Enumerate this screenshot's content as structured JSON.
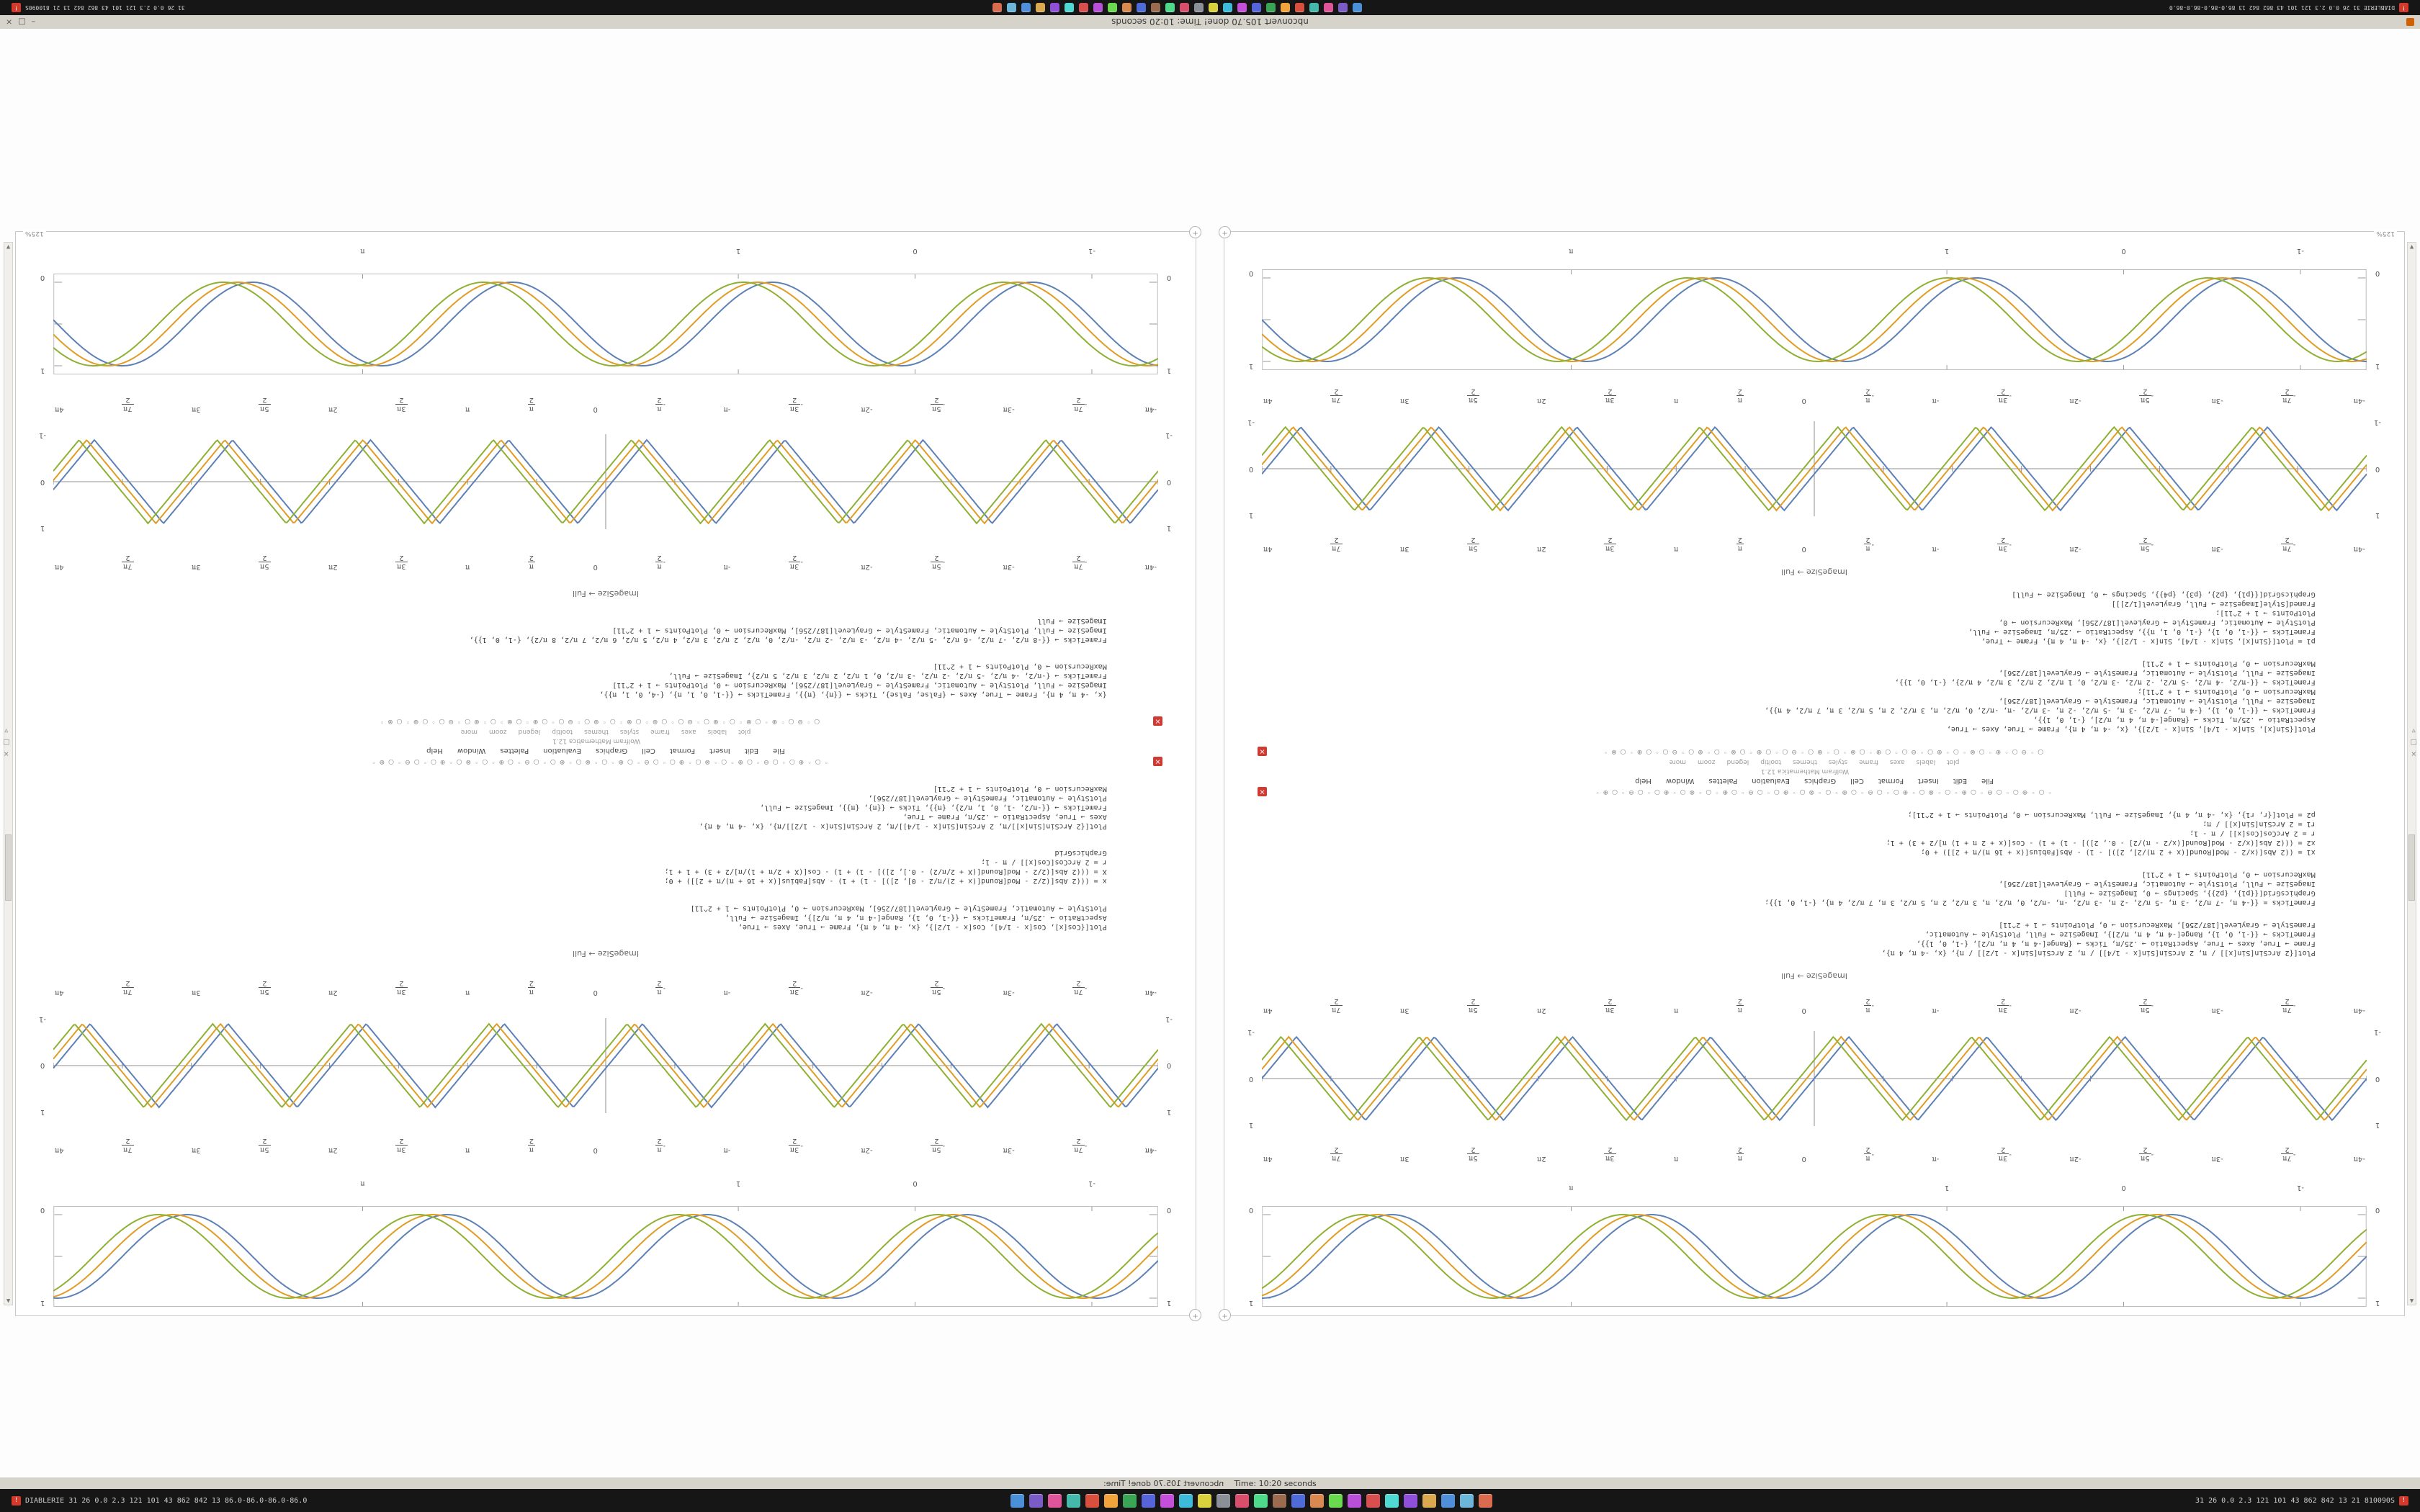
{
  "window": {
    "title": "nbconvert 105.70 done!   Time: 10:20 seconds",
    "controls": [
      "–",
      "□",
      "×"
    ],
    "zoom_badge": "125%"
  },
  "statusline": {
    "mirrored": "nbconvert 105.70 done!  Time:",
    "plain": "Time: 10:20 seconds"
  },
  "taskbar": {
    "left_stats": "DIABLERIE 31 26 0.0 2.3 121 101 43 862 842 13 86.0-86.0-86.0-86.0",
    "right_stats": "31 26 0.0 2.3 121 101 43 862 842 13 21 810090S",
    "alert_glyph": "!",
    "icons": [
      "#4a90d9",
      "#7b5cc6",
      "#e0559a",
      "#45b8ac",
      "#d94f3d",
      "#f2a33c",
      "#3aa655",
      "#5565d9",
      "#c44fd9",
      "#3dbbd9",
      "#d9d23d",
      "#8a8f98",
      "#d94f6b",
      "#4fd98a",
      "#9a6b4f",
      "#4f6bd9",
      "#d9884f",
      "#6bd94f",
      "#b84fd9",
      "#d94f4f",
      "#4fd9d2",
      "#8f4fd9",
      "#d9a84f",
      "#4f8fd9",
      "#6bb6d9",
      "#d96b4f"
    ]
  },
  "colors": {
    "series_blue": "#5E81B5",
    "series_yellow": "#E19C24",
    "series_green": "#8FB032",
    "close_red": "#cf3a32",
    "frame_gray": "#bdbdbd"
  },
  "ticks": {
    "half_pi": [
      "-4π",
      "-7π/2",
      "-3π",
      "-5π/2",
      "-2π",
      "-3π/2",
      "-π",
      "-π/2",
      "0",
      "π/2",
      "π",
      "3π/2",
      "2π",
      "5π/2",
      "3π",
      "7π/2",
      "4π"
    ],
    "framed": [
      {
        "label": "-1",
        "pos": 6
      },
      {
        "label": "0",
        "pos": 22
      },
      {
        "label": "1",
        "pos": 38
      },
      {
        "label": "π",
        "pos": 72
      }
    ],
    "yside": [
      "1",
      "0",
      "-1"
    ],
    "yside_framed": [
      "1",
      "0"
    ]
  },
  "plot_specs": {
    "framed": {
      "kind": "sin",
      "periods": 4.25,
      "frame": true,
      "series": [
        {
          "color": "#5E81B5",
          "phase": 0
        },
        {
          "color": "#E19C24",
          "phase": -0.35
        },
        {
          "color": "#8FB032",
          "phase": -0.7
        }
      ]
    },
    "axes": {
      "kind": "tri",
      "periods": 8,
      "axes": true,
      "series": [
        {
          "color": "#5E81B5",
          "phase": 0
        },
        {
          "color": "#E19C24",
          "phase": -0.35
        },
        {
          "color": "#8FB032",
          "phase": -0.7
        }
      ]
    }
  },
  "chart_data": [
    {
      "type": "line",
      "title": "framed sine comparison",
      "x_range": [
        "-4π",
        "4π"
      ],
      "ylim": [
        -1,
        1
      ],
      "series": [
        {
          "name": "Sin[x]"
        },
        {
          "name": "Sin[x - 1/4]"
        },
        {
          "name": "Sin[x - 1/2]"
        }
      ]
    },
    {
      "type": "line",
      "title": "triangle-wave comparison",
      "x_range": [
        "-4π",
        "4π"
      ],
      "ylim": [
        -1,
        1
      ],
      "series": [
        {
          "name": "2 ArcSin[Sin[x]]/π"
        },
        {
          "name": "2 ArcSin[Sin[x - 1/4]]/π"
        },
        {
          "name": "2 ArcSin[Sin[x - 1/2]]/π"
        }
      ]
    }
  ],
  "notebooks": [
    {
      "caption_a": "ImageSize → Full",
      "caption_b": "ImageSize → Full",
      "menu": [
        "File",
        "Edit",
        "Insert",
        "Format",
        "Cell",
        "Graphics",
        "Evaluation",
        "Palettes",
        "Window",
        "Help"
      ],
      "version": "Wolfram Mathematica 12.1",
      "suggestions": [
        "plot",
        "labels",
        "axes",
        "frame",
        "styles",
        "themes",
        "tooltip",
        "legend",
        "zoom",
        "more"
      ],
      "toolbar_glyphs": "◦○◦⊕○◦○⊖◦○⊕◦○◦⊗○◦⊕○◦○⊖◦○⊕◦○◦⊗○◦⊕○◦○⊖◦○⊕◦○◦⊗○◦⊕○◦○⊖◦○⊕◦",
      "toolbar_glyphs2": "○◦⊖○◦⊕◦○⊗◦○◦⊕○◦⊖○◦○⊕◦○⊗◦○◦⊕○◦⊖○◦○⊕◦○⊗◦○◦⊕○◦⊖○◦○⊕◦○⊗◦",
      "code_blocks": [
        [
          "Plot[{2 ArcSin[Sin[x]] / π, 2 ArcSin[Sin[x - 1/4]] / π, 2 ArcSin[Sin[x - 1/2]] / π}, {x, -4 π, 4 π},",
          " Frame → True, Axes → True, AspectRatio → .25/π, Ticks → {Range[-4 π, 4 π, π/2], {-1, 0, 1}},",
          " FrameTicks → {{-1, 0, 1}, Range[-4 π, 4 π, π/2]}, ImageSize → Full, PlotStyle → Automatic,",
          " FrameStyle → GrayLevel[187/256], MaxRecursion → 0, PlotPoints → 1 + 2^11]"
        ],
        [
          "FrameTicks = {{-4 π, -7 π/2, -3 π, -5 π/2, -2 π, -3 π/2, -π, -π/2, 0, π/2, π, 3 π/2, 2 π, 5 π/2, 3 π, 7 π/2, 4 π}, {-1, 0, 1}};",
          "GraphicsGrid[{{p1}, {p2}}, Spacings → 0, ImageSize → Full]",
          "ImageSize → Full, PlotStyle → Automatic, FrameStyle → GrayLevel[187/256],",
          "MaxRecursion → 0, PlotPoints → 1 + 2^11]"
        ],
        [
          "x1 = ((2 Abs[(x/2 - Mod[Round[(x + 2 π)/2], 2])] - 1) - Abs[Fabius[(x + 16 π)/π + 2]]) + 0;",
          "x2 = (((2 Abs[(x/2 - Mod[Round[(x/2 - π)/2] - 0., 2])] - 1) + 1) - Cos[(x + 2 π + 1) π]/2 + 3) + 1;",
          "r = 2 ArcCos[Cos[x]] / π - 1;",
          "r1 = 2 ArcSin[Sin[x]] / π;",
          "p2 = Plot[{r, r1}, {x, -4 π, 4 π}, ImageSize → Full, MaxRecursion → 0, PlotPoints → 1 + 2^11];"
        ],
        [
          "Plot[{Sin[x], Sin[x - 1/4], Sin[x - 1/2]}, {x, -4 π, 4 π}, Frame → True, Axes → True,",
          " AspectRatio → .25/π, Ticks → {Range[-4 π, 4 π, π/2], {-1, 0, 1}},",
          " FrameTicks → {{-1, 0, 1}, {-4 π, -7 π/2, -3 π, -5 π/2, -2 π, -3 π/2, -π, -π/2, 0, π/2, π, 3 π/2, 2 π, 5 π/2, 3 π, 7 π/2, 4 π}},",
          " ImageSize → Full, PlotStyle → Automatic, FrameStyle → GrayLevel[187/256],",
          " MaxRecursion → 0, PlotPoints → 1 + 2^11];",
          "FrameTicks → {{-π/2, -4 π/2, -5 π/2, -2 π/2, -3 π/2, 0, 1 π/2, 2 π/2, 3 π/2, 4 π/2}, {-1, 0, 1}},",
          " ImageSize → Full, PlotStyle → Automatic, FrameStyle → GrayLevel[187/256],",
          " MaxRecursion → 0, PlotPoints → 1 + 2^11]"
        ],
        [
          "p1 = Plot[{Sin[x], Sin[x - 1/4], Sin[x - 1/2]}, {x, -4 π, 4 π}, Frame → True,",
          " FrameTicks → {{-1, 0, 1}, {-1, 0, 1, π}}, AspectRatio → .25/π, ImageSize → Full,",
          " PlotStyle → Automatic, FrameStyle → GrayLevel[187/256], MaxRecursion → 0,",
          " PlotPoints → 1 + 2^11];",
          "Framed[Style[ImageSize → Full, GrayLevel[1/2]]]",
          "GraphicsGrid[{{p1}, {p2}, {p3}, {p4}}, Spacings → 0, ImageSize → Full]"
        ]
      ]
    },
    {
      "caption_a": "ImageSize → Full",
      "caption_b": "ImageSize → Full",
      "menu": [
        "File",
        "Edit",
        "Insert",
        "Format",
        "Cell",
        "Graphics",
        "Evaluation",
        "Palettes",
        "Window",
        "Help"
      ],
      "version": "Wolfram Mathematica 12.1",
      "suggestions": [
        "plot",
        "labels",
        "axes",
        "frame",
        "styles",
        "themes",
        "tooltip",
        "legend",
        "zoom",
        "more"
      ],
      "toolbar_glyphs": "◦○◦⊕○◦○⊖◦○⊕◦○◦⊗○◦⊕○◦○⊖◦○⊕◦○◦⊗○◦⊕○◦○⊖◦○⊕◦○◦⊗○◦⊕○◦○⊖◦○⊕◦",
      "toolbar_glyphs2": "○◦⊖○◦⊕◦○⊗◦○◦⊕○◦⊖○◦○⊕◦○⊗◦○◦⊕○◦⊖○◦○⊕◦○⊗◦○◦⊕○◦⊖○◦○⊕◦○⊗◦",
      "code_blocks": [
        [
          "Plot[{Cos[x], Cos[x - 1/4], Cos[x - 1/2]}, {x, -4 π, 4 π}, Frame → True, Axes → True,",
          " AspectRatio → .25/π, FrameTicks → {{-1, 0, 1}, Range[-4 π, 4 π, π/2]}, ImageSize → Full,",
          " PlotStyle → Automatic, FrameStyle → GrayLevel[187/256], MaxRecursion → 0, PlotPoints → 1 + 2^11]"
        ],
        [
          "x = (((2 Abs[(2/2 - Mod[Round[(x + 2)/π/2 - 0], 2])] - 1) + 1) - Abs[Fabius[(x + 16 + π)/π + 2]]) + 0;",
          "X = (((2 Abs[(2/2 - Mod[Round[(X + 2/π/2) - 0.], 2])] - 1) + 1) - Cos[(X + 2/π + 1)/π]/2 + 3) + 1 + 1;",
          "r = 2 ArcCos[Cos[x]] / π - 1;",
          "GraphicsGrid"
        ],
        [
          "Plot[{2 ArcSin[Sin[x]]/π, 2 ArcSin[Sin[x - 1/4]]/π, 2 ArcSin[Sin[x - 1/2]]/π}, {x, -4 π, 4 π},",
          " Axes → True, AspectRatio → .25/π, Frame → True,",
          " FrameTicks → {{-π/2, -1, 0, 1, π/2}, {π}}, Ticks → {{π}, {π}}, ImageSize → Full,",
          " PlotStyle → Automatic, FrameStyle → GrayLevel[187/256],",
          " MaxRecursion → 0, PlotPoints → 1 + 2^11]"
        ],
        [
          "{x, -4 π, 4 π}, Frame → True, Axes → {False, False}, Ticks → {{π}, {π}}, FrameTicks → {{-1, 0, 1, π}, {-4, 0, 1, π}},",
          " ImageSize → Full, PlotStyle → Automatic, FrameStyle → GrayLevel[187/256], MaxRecursion → 0, PlotPoints → 1 + 2^11]",
          "FrameTicks → {-π/2, -4 π/2, -5 π/2, -2 π/2, -3 π/2, 0, 1 π/2, 2 π/2, 3 π/2, 5 π/2}, ImageSize → Full,",
          "MaxRecursion → 0, PlotPoints → 1 + 2^11]"
        ],
        [
          "FrameTicks → {{-8 π/2, -7 π/2, -6 π/2, -5 π/2, -4 π/2, -3 π/2, -2 π/2, -π/2, 0, π/2, 2 π/2, 3 π/2, 4 π/2, 5 π/2, 6 π/2, 7 π/2, 8 π/2}, {-1, 0, 1}},",
          " ImageSize → Full, PlotStyle → Automatic, FrameStyle → GrayLevel[187/256], MaxRecursion → 0, PlotPoints → 1 + 2^11]",
          "ImageSize → Full"
        ]
      ]
    }
  ]
}
